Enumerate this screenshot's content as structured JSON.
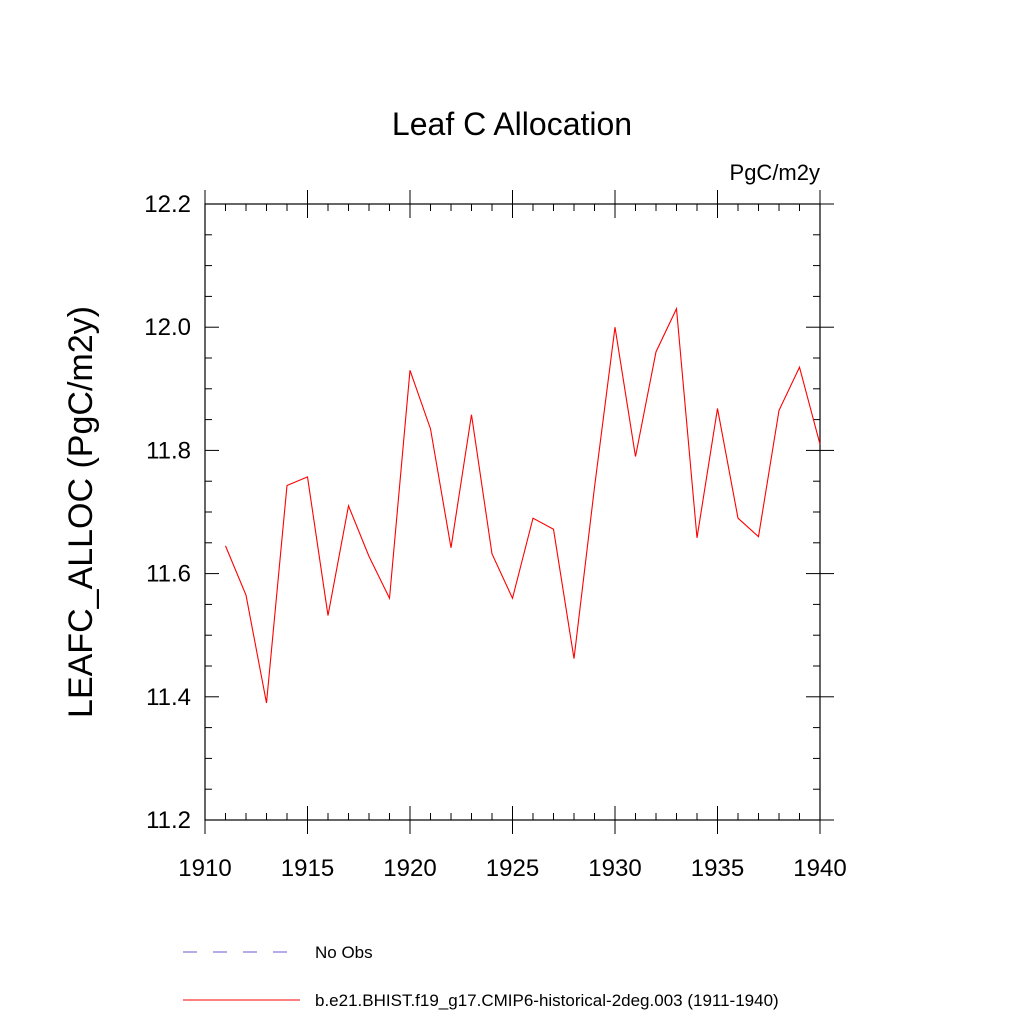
{
  "chart_data": {
    "type": "line",
    "title": "Leaf C Allocation",
    "units_label": "PgC/m2y",
    "ylabel": "LEAFC_ALLOC  (PgC/m2y)",
    "xlabel": "",
    "xlim": [
      1910,
      1940
    ],
    "ylim": [
      11.2,
      12.2
    ],
    "x_ticks": [
      1910,
      1915,
      1920,
      1925,
      1930,
      1935,
      1940
    ],
    "x_tick_labels": [
      "1910",
      "1915",
      "1920",
      "1925",
      "1930",
      "1935",
      "1940"
    ],
    "y_ticks": [
      11.2,
      11.4,
      11.6,
      11.8,
      12.0,
      12.2
    ],
    "y_tick_labels": [
      "11.2",
      "11.4",
      "11.6",
      "11.8",
      "12.0",
      "12.2"
    ],
    "grid": false,
    "legend_position": "bottom",
    "series": [
      {
        "name": "No Obs",
        "color": "#6a5acd",
        "style": "dashed",
        "x": [],
        "y": []
      },
      {
        "name": "b.e21.BHIST.f19_g17.CMIP6-historical-2deg.003 (1911-1940)",
        "color": "#ff0000",
        "style": "solid",
        "x": [
          1911,
          1912,
          1913,
          1914,
          1915,
          1916,
          1917,
          1918,
          1919,
          1920,
          1921,
          1922,
          1923,
          1924,
          1925,
          1926,
          1927,
          1928,
          1929,
          1930,
          1931,
          1932,
          1933,
          1934,
          1935,
          1936,
          1937,
          1938,
          1939,
          1940
        ],
        "y": [
          11.645,
          11.565,
          11.39,
          11.743,
          11.757,
          11.532,
          11.71,
          11.628,
          11.56,
          11.93,
          11.835,
          11.642,
          11.858,
          11.632,
          11.56,
          11.69,
          11.672,
          11.462,
          11.74,
          12.0,
          11.79,
          11.96,
          12.03,
          11.658,
          11.868,
          11.69,
          11.66,
          11.865,
          11.935,
          11.81
        ]
      }
    ]
  }
}
